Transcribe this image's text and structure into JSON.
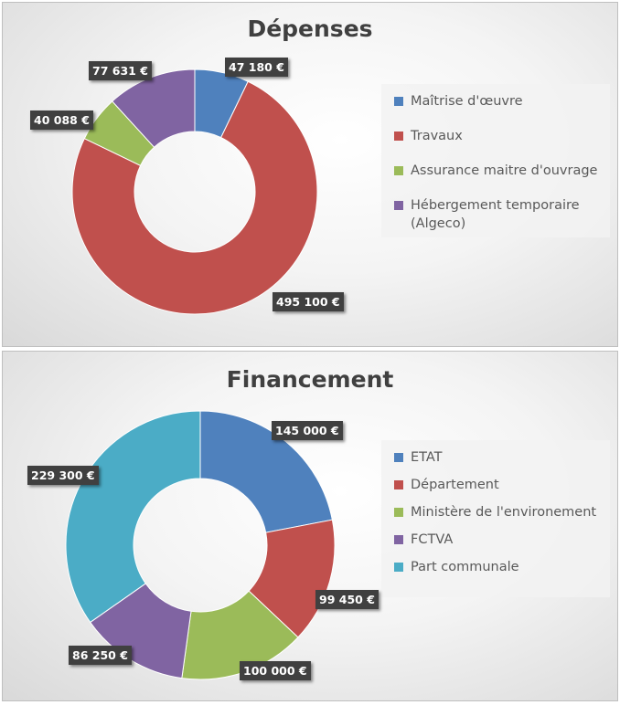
{
  "chart_data": [
    {
      "type": "pie",
      "title": "Dépenses",
      "categories": [
        "Maîtrise d'œuvre",
        "Travaux",
        "Assurance maitre d'ouvrage",
        "Hébergement temporaire (Algeco)"
      ],
      "values": [
        47180,
        495100,
        40088,
        77631
      ],
      "value_labels": [
        "47 180 €",
        "495 100 €",
        "40 088 €",
        "77 631 €"
      ],
      "colors": [
        "#4f81bd",
        "#c0504d",
        "#9bbb59",
        "#8064a2"
      ],
      "legend_position": "right",
      "donut": true
    },
    {
      "type": "pie",
      "title": "Financement",
      "categories": [
        "ETAT",
        "Département",
        "Ministère de l'environement",
        "FCTVA",
        "Part communale"
      ],
      "values": [
        145000,
        99450,
        100000,
        86250,
        229300
      ],
      "value_labels": [
        "145 000 €",
        "99 450 €",
        "100 000 €",
        "86 250 €",
        "229 300 €"
      ],
      "colors": [
        "#4f81bd",
        "#c0504d",
        "#9bbb59",
        "#8064a2",
        "#4bacc6"
      ],
      "legend_position": "right",
      "donut": true
    }
  ]
}
